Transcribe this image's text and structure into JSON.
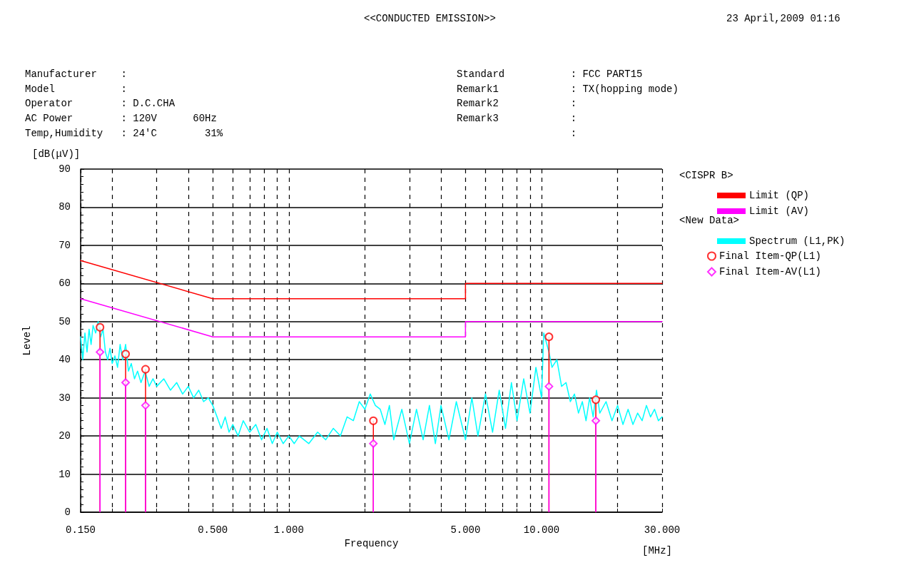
{
  "chart_data": {
    "type": "line",
    "title": "<<CONDUCTED EMISSION>>",
    "subtitle": "23 April,2009 01:16",
    "xlabel": "Frequency",
    "ylabel": "Level",
    "annotations": [
      "Manufacturer    :",
      "Model           :",
      "Operator        : D.C.CHA",
      "AC Power        : 120V      60Hz",
      "Temp,Humidity   : 24'C        31%",
      "Standard           : FCC PART15",
      "Remark1            : TX(hopping mode)",
      "Remark2            :",
      "Remark3            :",
      "                   :",
      "<CISPR B>",
      "<New Data>",
      "[dB(μV)]",
      "[MHz]"
    ],
    "log": "x",
    "xlim": [
      0.15,
      30
    ],
    "ylim": [
      0,
      90
    ],
    "xticks": [
      {
        "value": 0.15,
        "label": "0.150"
      },
      {
        "value": 0.2,
        "label": null
      },
      {
        "value": 0.3,
        "label": null
      },
      {
        "value": 0.4,
        "label": null
      },
      {
        "value": 0.5,
        "label": "0.500"
      },
      {
        "value": 0.6,
        "label": null
      },
      {
        "value": 0.7,
        "label": null
      },
      {
        "value": 0.8,
        "label": null
      },
      {
        "value": 0.9,
        "label": null
      },
      {
        "value": 1,
        "label": "1.000"
      },
      {
        "value": 2,
        "label": null
      },
      {
        "value": 3,
        "label": null
      },
      {
        "value": 4,
        "label": null
      },
      {
        "value": 5,
        "label": "5.000"
      },
      {
        "value": 6,
        "label": null
      },
      {
        "value": 7,
        "label": null
      },
      {
        "value": 8,
        "label": null
      },
      {
        "value": 9,
        "label": null
      },
      {
        "value": 10,
        "label": "10.000"
      },
      {
        "value": 20,
        "label": null
      },
      {
        "value": 30,
        "label": "30.000"
      }
    ],
    "yticks": [
      0,
      10,
      20,
      30,
      40,
      50,
      60,
      70,
      80,
      90
    ],
    "grid": true,
    "legend": "right",
    "line_style": "solid",
    "series": [
      {
        "name": "Limit (QP)",
        "type": "line",
        "color": "#ff0000",
        "marker": "none",
        "x": [
          0.15,
          0.5,
          5,
          5,
          30
        ],
        "values": [
          66,
          56,
          56,
          60,
          60
        ]
      },
      {
        "name": "Limit (AV)",
        "type": "line",
        "color": "#ff00ff",
        "marker": "none",
        "x": [
          0.15,
          0.5,
          5,
          5,
          30
        ],
        "values": [
          56,
          46,
          46,
          50,
          50
        ]
      },
      {
        "name": "Spectrum (L1,PK)",
        "type": "line",
        "color": "#00ffff",
        "marker": "none",
        "x": [
          0.15,
          0.153,
          0.156,
          0.159,
          0.162,
          0.165,
          0.168,
          0.172,
          0.176,
          0.18,
          0.184,
          0.188,
          0.192,
          0.196,
          0.2,
          0.205,
          0.21,
          0.215,
          0.22,
          0.226,
          0.232,
          0.238,
          0.245,
          0.252,
          0.26,
          0.27,
          0.28,
          0.29,
          0.3,
          0.32,
          0.34,
          0.36,
          0.38,
          0.4,
          0.42,
          0.44,
          0.46,
          0.48,
          0.5,
          0.52,
          0.54,
          0.56,
          0.58,
          0.6,
          0.63,
          0.66,
          0.7,
          0.74,
          0.78,
          0.82,
          0.86,
          0.9,
          0.95,
          1,
          1.05,
          1.1,
          1.2,
          1.3,
          1.4,
          1.5,
          1.6,
          1.7,
          1.8,
          1.9,
          2,
          2.1,
          2.2,
          2.3,
          2.4,
          2.5,
          2.6,
          2.8,
          3,
          3.2,
          3.4,
          3.6,
          3.8,
          4,
          4.3,
          4.6,
          5,
          5.3,
          5.6,
          6,
          6.4,
          6.8,
          7.2,
          7.6,
          8,
          8.5,
          9,
          9.5,
          10,
          10.2,
          10.7,
          11,
          11.5,
          12,
          12.5,
          13,
          13.5,
          14,
          14.5,
          15,
          15.5,
          16,
          16.5,
          17,
          18,
          19,
          20,
          21,
          22,
          23,
          24,
          25,
          26,
          27,
          28,
          29,
          30
        ],
        "values": [
          46,
          40,
          47,
          42,
          48,
          44,
          49,
          47,
          50,
          46,
          48,
          42,
          40,
          43,
          39,
          41,
          38,
          44,
          40,
          44,
          37,
          39,
          35,
          37,
          34,
          37,
          33,
          35,
          33,
          35,
          32,
          34,
          31,
          33,
          30,
          32,
          29,
          30,
          28,
          25,
          22,
          25,
          21,
          23,
          20,
          24,
          21,
          23,
          19,
          22,
          18,
          21,
          18,
          20,
          18,
          20,
          18,
          21,
          19,
          22,
          20,
          25,
          24,
          29,
          27,
          31,
          28,
          27,
          23,
          28,
          19,
          27,
          18,
          27,
          19,
          28,
          18,
          28,
          19,
          29,
          19,
          30,
          20,
          31,
          21,
          32,
          22,
          34,
          24,
          35,
          26,
          38,
          30,
          47,
          42,
          38,
          40,
          33,
          34,
          29,
          31,
          26,
          29,
          24,
          30,
          25,
          32,
          26,
          29,
          24,
          28,
          23,
          27,
          23,
          26,
          24,
          28,
          25,
          27,
          24,
          25
        ]
      },
      {
        "name": "Final Item-QP(L1)",
        "type": "lollipop",
        "color": "#ff0000",
        "marker": "circle",
        "x": [
          0.179,
          0.226,
          0.271,
          2.16,
          10.7,
          16.4
        ],
        "values": [
          48.5,
          41.5,
          37.5,
          24,
          46,
          29.5
        ]
      },
      {
        "name": "Final Item-AV(L1)",
        "type": "lollipop",
        "color": "#ff00ff",
        "marker": "diamond",
        "x": [
          0.179,
          0.226,
          0.271,
          2.16,
          10.7,
          16.4
        ],
        "values": [
          42,
          34,
          28,
          18,
          33,
          24
        ]
      }
    ]
  }
}
